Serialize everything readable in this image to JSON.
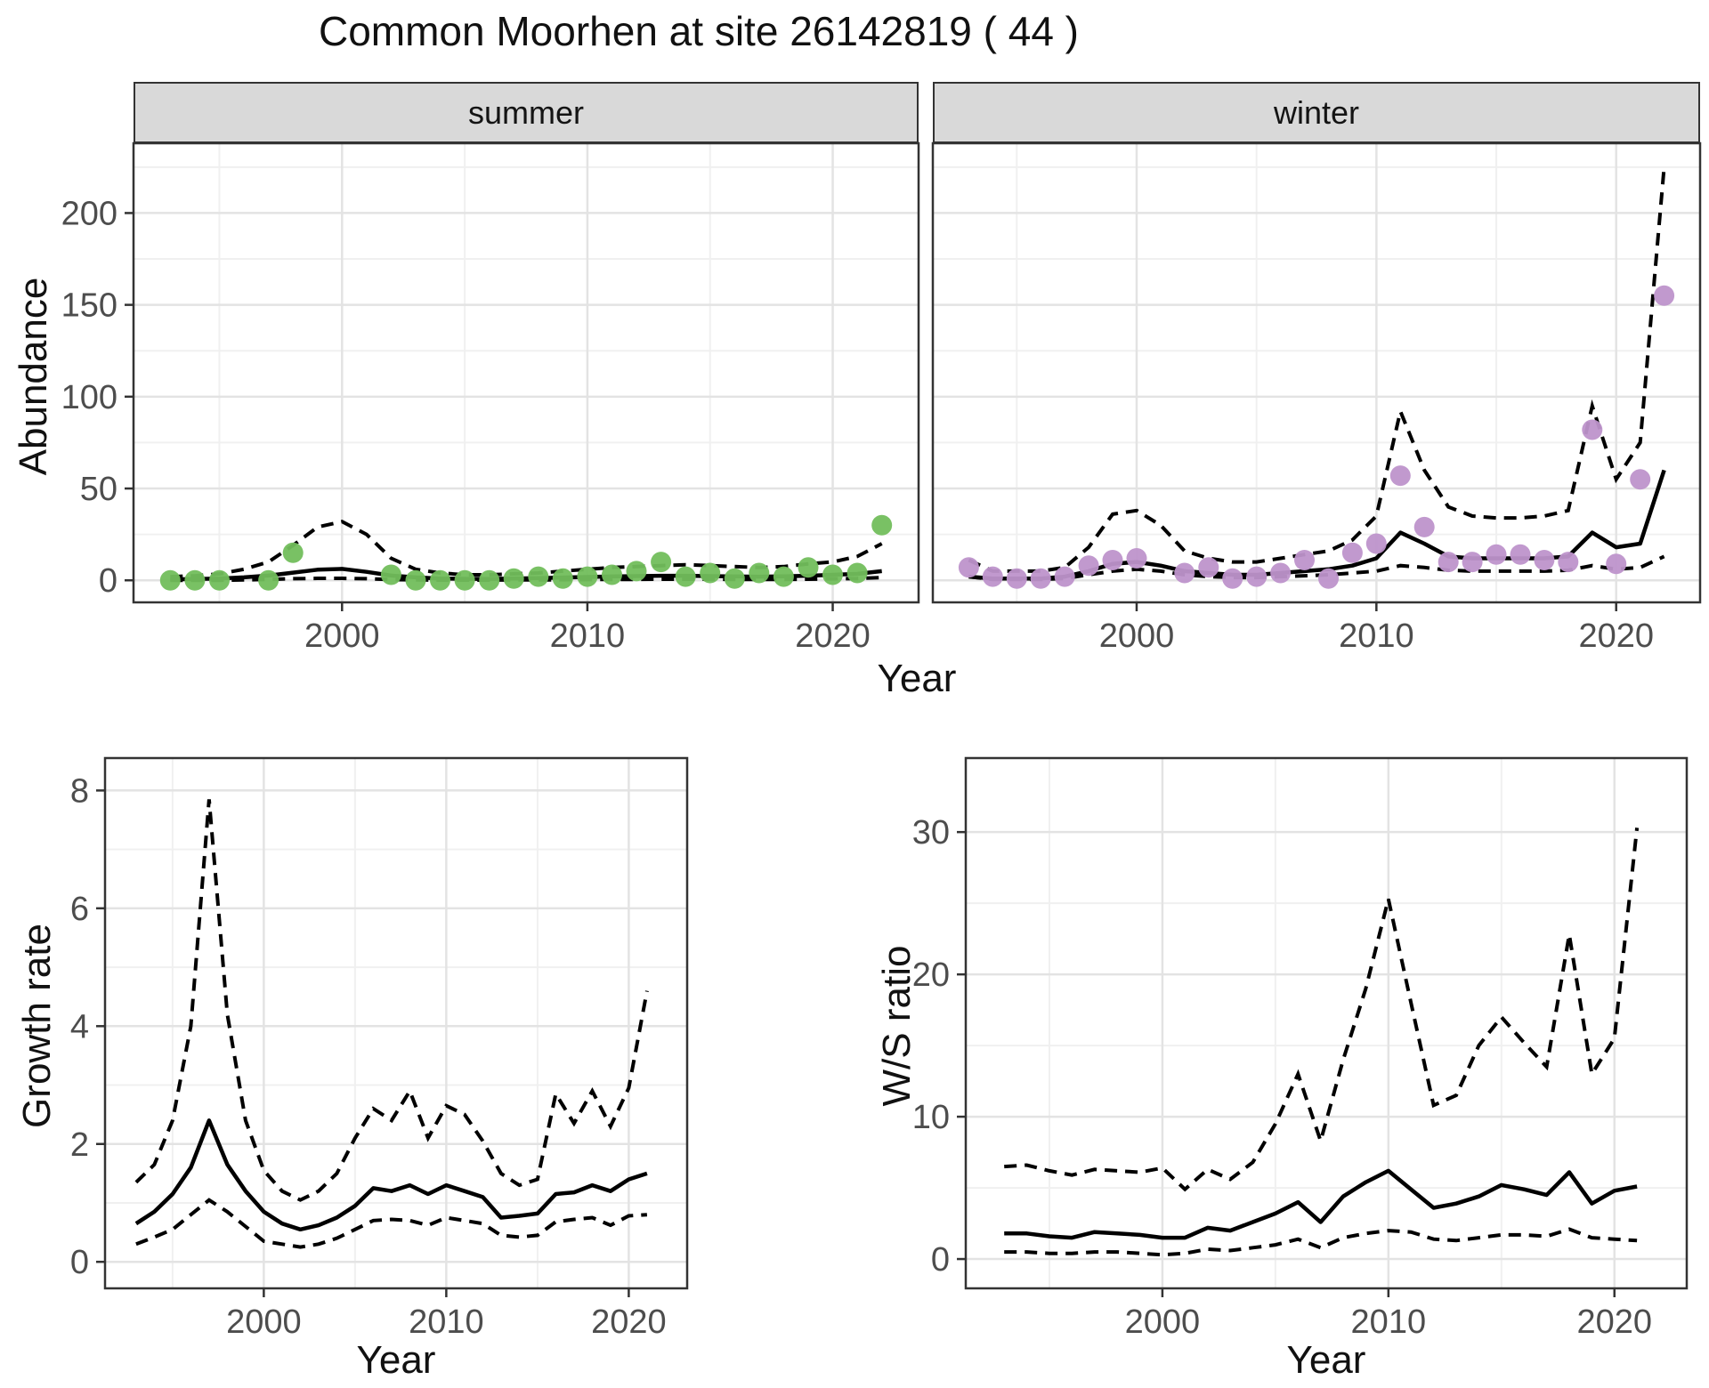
{
  "title": "Common Moorhen at site 26142819 ( 44 )",
  "colors": {
    "summer_points": "#72BE5C",
    "winter_points": "#BE93CB",
    "line": "#000000",
    "strip_bg": "#D9D9D9",
    "grid_major": "#E3E3E3",
    "grid_minor": "#F0F0F0",
    "tick_text": "#4D4D4D",
    "panel_border": "#333333"
  },
  "top_row": {
    "ylabel": "Abundance",
    "xlabel": "Year"
  },
  "chart_data": [
    {
      "id": "abundance-summer",
      "type": "scatter",
      "facet_label": "summer",
      "point_color": "#72BE5C",
      "x": {
        "domain": [
          1991.5,
          2023.5
        ],
        "major": [
          2000,
          2010,
          2020
        ],
        "minor": [
          1995,
          2005,
          2015
        ],
        "labels": [
          "2000",
          "2010",
          "2020"
        ]
      },
      "y": {
        "domain": [
          -12,
          238
        ],
        "major": [
          0,
          50,
          100,
          150,
          200
        ],
        "minor": [
          25,
          75,
          125,
          175,
          225
        ],
        "labels": [
          "0",
          "50",
          "100",
          "150",
          "200"
        ]
      },
      "points": {
        "years": [
          1993,
          1994,
          1995,
          1997,
          1998,
          2002,
          2003,
          2004,
          2005,
          2006,
          2007,
          2008,
          2009,
          2010,
          2011,
          2012,
          2013,
          2014,
          2015,
          2016,
          2017,
          2018,
          2019,
          2020,
          2021,
          2022
        ],
        "values": [
          0,
          0,
          0,
          0,
          15,
          3,
          0,
          0,
          0,
          0,
          1,
          2,
          1,
          2,
          3,
          5,
          10,
          2,
          4,
          1,
          4,
          2,
          7,
          3,
          4,
          30
        ]
      },
      "fit": {
        "years": [
          1993,
          1994,
          1995,
          1996,
          1997,
          1998,
          1999,
          2000,
          2001,
          2002,
          2003,
          2004,
          2005,
          2006,
          2007,
          2008,
          2009,
          2010,
          2011,
          2012,
          2013,
          2014,
          2015,
          2016,
          2017,
          2018,
          2019,
          2020,
          2021,
          2022
        ],
        "values": [
          0.5,
          0.7,
          1.0,
          1.6,
          2.6,
          4.2,
          5.8,
          6.2,
          4.6,
          2.6,
          1.6,
          1.0,
          0.8,
          0.8,
          1.0,
          1.2,
          1.5,
          1.8,
          2.1,
          2.3,
          2.5,
          2.5,
          2.3,
          2.1,
          2.0,
          2.2,
          2.5,
          3.0,
          3.5,
          5.0
        ]
      },
      "ci_upper": {
        "years": [
          1993,
          1994,
          1995,
          1996,
          1997,
          1998,
          1999,
          2000,
          2001,
          2002,
          2003,
          2004,
          2005,
          2006,
          2007,
          2008,
          2009,
          2010,
          2011,
          2012,
          2013,
          2014,
          2015,
          2016,
          2017,
          2018,
          2019,
          2020,
          2021,
          2022
        ],
        "values": [
          2,
          2.5,
          3.5,
          6,
          10,
          19,
          29,
          32,
          25,
          12,
          6,
          4,
          3,
          3,
          3.5,
          4,
          5,
          6,
          7,
          7.5,
          8,
          8.5,
          8,
          7.5,
          7,
          7.5,
          9,
          10,
          13,
          20
        ]
      },
      "ci_lower": {
        "years": [
          1993,
          1994,
          1995,
          1996,
          1997,
          1998,
          1999,
          2000,
          2001,
          2002,
          2003,
          2004,
          2005,
          2006,
          2007,
          2008,
          2009,
          2010,
          2011,
          2012,
          2013,
          2014,
          2015,
          2016,
          2017,
          2018,
          2019,
          2020,
          2021,
          2022
        ],
        "values": [
          0,
          0,
          0,
          0.2,
          0.5,
          0.9,
          1.1,
          1.1,
          0.9,
          0.4,
          0.2,
          0.1,
          0.1,
          0.1,
          0.2,
          0.2,
          0.3,
          0.4,
          0.5,
          0.5,
          0.6,
          0.6,
          0.6,
          0.5,
          0.5,
          0.5,
          0.6,
          0.8,
          1.0,
          1.5
        ]
      }
    },
    {
      "id": "abundance-winter",
      "type": "scatter",
      "facet_label": "winter",
      "point_color": "#BE93CB",
      "x": {
        "domain": [
          1991.5,
          2023.5
        ],
        "major": [
          2000,
          2010,
          2020
        ],
        "minor": [
          1995,
          2005,
          2015
        ],
        "labels": [
          "2000",
          "2010",
          "2020"
        ]
      },
      "y": {
        "domain": [
          -12,
          238
        ],
        "major": [
          0,
          50,
          100,
          150,
          200
        ],
        "minor": [
          25,
          75,
          125,
          175,
          225
        ],
        "labels": [
          "0",
          "50",
          "100",
          "150",
          "200"
        ]
      },
      "points": {
        "years": [
          1993,
          1994,
          1995,
          1996,
          1997,
          1998,
          1999,
          2000,
          2002,
          2003,
          2004,
          2005,
          2006,
          2007,
          2008,
          2009,
          2010,
          2011,
          2012,
          2013,
          2014,
          2015,
          2016,
          2017,
          2018,
          2019,
          2020,
          2021,
          2022
        ],
        "values": [
          7,
          2,
          1,
          1,
          2,
          8,
          11,
          12,
          4,
          7,
          1,
          2,
          4,
          11,
          1,
          15,
          20,
          57,
          29,
          10,
          10,
          14,
          14,
          11,
          10,
          82,
          9,
          55,
          155
        ]
      },
      "fit": {
        "years": [
          1993,
          1994,
          1995,
          1996,
          1997,
          1998,
          1999,
          2000,
          2001,
          2002,
          2003,
          2004,
          2005,
          2006,
          2007,
          2008,
          2009,
          2010,
          2011,
          2012,
          2013,
          2014,
          2015,
          2016,
          2017,
          2018,
          2019,
          2020,
          2021,
          2022
        ],
        "values": [
          2,
          1,
          1,
          1,
          2,
          5,
          9,
          10,
          8,
          5,
          4,
          3,
          3,
          4,
          5,
          6,
          8,
          12,
          26,
          20,
          13,
          12,
          12,
          12,
          12,
          13,
          26,
          18,
          20,
          60
        ]
      },
      "ci_upper": {
        "years": [
          1993,
          1994,
          1995,
          1996,
          1997,
          1998,
          1999,
          2000,
          2001,
          2002,
          2003,
          2004,
          2005,
          2006,
          2007,
          2008,
          2009,
          2010,
          2011,
          2012,
          2013,
          2014,
          2015,
          2016,
          2017,
          2018,
          2019,
          2020,
          2021,
          2022
        ],
        "values": [
          11,
          5,
          5,
          5,
          7,
          18,
          36,
          38,
          30,
          16,
          12,
          10,
          10,
          12,
          14,
          16,
          22,
          35,
          92,
          60,
          40,
          35,
          34,
          34,
          35,
          38,
          95,
          55,
          75,
          225
        ]
      },
      "ci_lower": {
        "years": [
          1993,
          1994,
          1995,
          1996,
          1997,
          1998,
          1999,
          2000,
          2001,
          2002,
          2003,
          2004,
          2005,
          2006,
          2007,
          2008,
          2009,
          2010,
          2011,
          2012,
          2013,
          2014,
          2015,
          2016,
          2017,
          2018,
          2019,
          2020,
          2021,
          2022
        ],
        "values": [
          2,
          0.5,
          0.5,
          0.5,
          1,
          3,
          5,
          6,
          5,
          3,
          2,
          1.5,
          1.5,
          2,
          2.5,
          3,
          4,
          5,
          8,
          7,
          5.5,
          5,
          5,
          5,
          5,
          5.5,
          8,
          6,
          7,
          13
        ]
      }
    },
    {
      "id": "growth-rate",
      "type": "line",
      "ylabel": "Growth rate",
      "xlabel": "Year",
      "x": {
        "domain": [
          1991.3,
          2023.2
        ],
        "major": [
          2000,
          2010,
          2020
        ],
        "minor": [
          1995,
          2005,
          2015
        ],
        "labels": [
          "2000",
          "2010",
          "2020"
        ]
      },
      "y": {
        "domain": [
          -0.45,
          8.55
        ],
        "major": [
          0,
          2,
          4,
          6,
          8
        ],
        "minor": [
          1,
          3,
          5,
          7
        ],
        "labels": [
          "0",
          "2",
          "4",
          "6",
          "8"
        ]
      },
      "fit": {
        "years": [
          1993,
          1994,
          1995,
          1996,
          1997,
          1998,
          1999,
          2000,
          2001,
          2002,
          2003,
          2004,
          2005,
          2006,
          2007,
          2008,
          2009,
          2010,
          2011,
          2012,
          2013,
          2014,
          2015,
          2016,
          2017,
          2018,
          2019,
          2020,
          2021
        ],
        "values": [
          0.65,
          0.85,
          1.15,
          1.6,
          2.4,
          1.65,
          1.2,
          0.85,
          0.65,
          0.55,
          0.62,
          0.75,
          0.95,
          1.25,
          1.2,
          1.3,
          1.15,
          1.3,
          1.2,
          1.1,
          0.75,
          0.78,
          0.82,
          1.15,
          1.18,
          1.3,
          1.2,
          1.4,
          1.5
        ]
      },
      "ci_upper": {
        "years": [
          1993,
          1994,
          1995,
          1996,
          1997,
          1998,
          1999,
          2000,
          2001,
          2002,
          2003,
          2004,
          2005,
          2006,
          2007,
          2008,
          2009,
          2010,
          2011,
          2012,
          2013,
          2014,
          2015,
          2016,
          2017,
          2018,
          2019,
          2020,
          2021
        ],
        "values": [
          1.35,
          1.65,
          2.4,
          4.0,
          7.85,
          4.2,
          2.4,
          1.55,
          1.2,
          1.05,
          1.2,
          1.5,
          2.1,
          2.6,
          2.4,
          2.9,
          2.1,
          2.65,
          2.5,
          2.05,
          1.5,
          1.3,
          1.4,
          2.85,
          2.35,
          2.9,
          2.3,
          2.95,
          4.6
        ]
      },
      "ci_lower": {
        "years": [
          1993,
          1994,
          1995,
          1996,
          1997,
          1998,
          1999,
          2000,
          2001,
          2002,
          2003,
          2004,
          2005,
          2006,
          2007,
          2008,
          2009,
          2010,
          2011,
          2012,
          2013,
          2014,
          2015,
          2016,
          2017,
          2018,
          2019,
          2020,
          2021
        ],
        "values": [
          0.3,
          0.42,
          0.55,
          0.8,
          1.05,
          0.85,
          0.6,
          0.35,
          0.3,
          0.25,
          0.3,
          0.4,
          0.55,
          0.7,
          0.72,
          0.7,
          0.62,
          0.75,
          0.7,
          0.65,
          0.45,
          0.42,
          0.45,
          0.68,
          0.72,
          0.75,
          0.62,
          0.78,
          0.8
        ]
      }
    },
    {
      "id": "ws-ratio",
      "type": "line",
      "ylabel": "W/S ratio",
      "xlabel": "Year",
      "x": {
        "domain": [
          1991.3,
          2023.2
        ],
        "major": [
          2000,
          2010,
          2020
        ],
        "minor": [
          1995,
          2005,
          2015
        ],
        "labels": [
          "2000",
          "2010",
          "2020"
        ]
      },
      "y": {
        "domain": [
          -2.06,
          35.2
        ],
        "major": [
          0,
          10,
          20,
          30
        ],
        "minor": [
          5,
          15,
          25
        ],
        "labels": [
          "0",
          "10",
          "20",
          "30"
        ]
      },
      "fit": {
        "years": [
          1993,
          1994,
          1995,
          1996,
          1997,
          1998,
          1999,
          2000,
          2001,
          2002,
          2003,
          2004,
          2005,
          2006,
          2007,
          2008,
          2009,
          2010,
          2011,
          2012,
          2013,
          2014,
          2015,
          2016,
          2017,
          2018,
          2019,
          2020,
          2021
        ],
        "values": [
          1.8,
          1.8,
          1.6,
          1.5,
          1.9,
          1.8,
          1.7,
          1.5,
          1.5,
          2.2,
          2.0,
          2.6,
          3.2,
          4.0,
          2.6,
          4.4,
          5.4,
          6.2,
          4.9,
          3.6,
          3.9,
          4.4,
          5.2,
          4.9,
          4.5,
          6.1,
          3.9,
          4.8,
          5.1
        ]
      },
      "ci_upper": {
        "years": [
          1993,
          1994,
          1995,
          1996,
          1997,
          1998,
          1999,
          2000,
          2001,
          2002,
          2003,
          2004,
          2005,
          2006,
          2007,
          2008,
          2009,
          2010,
          2011,
          2012,
          2013,
          2014,
          2015,
          2016,
          2017,
          2018,
          2019,
          2020,
          2021
        ],
        "values": [
          6.5,
          6.6,
          6.2,
          5.9,
          6.3,
          6.2,
          6.1,
          6.4,
          4.9,
          6.3,
          5.6,
          6.8,
          9.5,
          13.0,
          8.3,
          14.0,
          19.0,
          25.3,
          18.0,
          10.8,
          11.5,
          15.0,
          17.0,
          15.2,
          13.5,
          22.8,
          13.0,
          15.5,
          30.3
        ]
      },
      "ci_lower": {
        "years": [
          1993,
          1994,
          1995,
          1996,
          1997,
          1998,
          1999,
          2000,
          2001,
          2002,
          2003,
          2004,
          2005,
          2006,
          2007,
          2008,
          2009,
          2010,
          2011,
          2012,
          2013,
          2014,
          2015,
          2016,
          2017,
          2018,
          2019,
          2020,
          2021
        ],
        "values": [
          0.5,
          0.5,
          0.4,
          0.4,
          0.5,
          0.5,
          0.4,
          0.3,
          0.4,
          0.7,
          0.6,
          0.8,
          1.0,
          1.4,
          0.8,
          1.5,
          1.8,
          2.0,
          1.9,
          1.4,
          1.3,
          1.5,
          1.7,
          1.7,
          1.6,
          2.1,
          1.5,
          1.4,
          1.3
        ]
      }
    }
  ]
}
